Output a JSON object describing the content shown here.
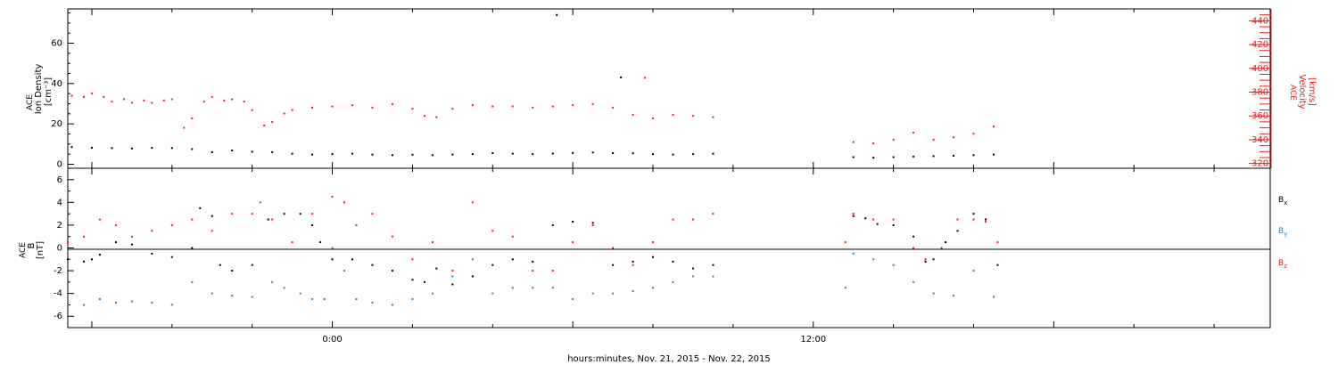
{
  "chart_data": [
    {
      "type": "scatter",
      "title": "",
      "ylabel_lines": [
        "ACE",
        "Ion Density",
        "[cm⁻³]"
      ],
      "ylim": [
        -2,
        77
      ],
      "yticks": [
        0,
        20,
        40,
        60
      ],
      "y2label_lines": [
        "ACE",
        "Velocity",
        "[km/s]"
      ],
      "y2lim": [
        316,
        450
      ],
      "y2ticks": [
        320,
        340,
        360,
        380,
        400,
        420,
        440
      ],
      "colors": {
        "density": "#000000",
        "velocity": "#e8201f"
      },
      "series": [
        {
          "axis": "left",
          "color": "#000000",
          "points": [
            [
              -6.5,
              8.5
            ],
            [
              -6,
              8.2
            ],
            [
              -5.5,
              8.0
            ],
            [
              -5,
              7.8
            ],
            [
              -4.5,
              8.1
            ],
            [
              -4,
              8.0
            ],
            [
              -3.5,
              7.5
            ],
            [
              -3,
              6.0
            ],
            [
              -2.5,
              6.8
            ],
            [
              -2,
              6.2
            ],
            [
              -1.5,
              6.0
            ],
            [
              -1,
              5.2
            ],
            [
              -0.5,
              4.8
            ],
            [
              0,
              5.0
            ],
            [
              0.5,
              5.2
            ],
            [
              1,
              4.8
            ],
            [
              1.5,
              4.5
            ],
            [
              2,
              4.7
            ],
            [
              2.5,
              4.5
            ],
            [
              3,
              4.8
            ],
            [
              3.5,
              5.0
            ],
            [
              4,
              5.5
            ],
            [
              4.5,
              5.2
            ],
            [
              5,
              5.0
            ],
            [
              5.5,
              5.3
            ],
            [
              6,
              5.6
            ],
            [
              6.5,
              5.8
            ],
            [
              7,
              5.5
            ],
            [
              7.5,
              5.4
            ],
            [
              8,
              5.0
            ],
            [
              8.5,
              4.8
            ],
            [
              9,
              5.0
            ],
            [
              9.5,
              5.2
            ],
            [
              13,
              3.5
            ],
            [
              13.5,
              3.2
            ],
            [
              14,
              3.5
            ],
            [
              14.5,
              3.8
            ],
            [
              15,
              4.0
            ],
            [
              15.5,
              4.2
            ],
            [
              16,
              4.5
            ],
            [
              16.5,
              4.8
            ],
            [
              7.2,
              43
            ],
            [
              5.6,
              74
            ]
          ]
        },
        {
          "axis": "right",
          "color": "#e8201f",
          "points": [
            [
              -6.5,
              377
            ],
            [
              -6.2,
              376
            ],
            [
              -6,
              379
            ],
            [
              -5.7,
              376
            ],
            [
              -5.5,
              372
            ],
            [
              -5.2,
              374
            ],
            [
              -5,
              371
            ],
            [
              -4.7,
              373
            ],
            [
              -4.5,
              371
            ],
            [
              -4.2,
              373
            ],
            [
              -4,
              374
            ],
            [
              -3.7,
              350
            ],
            [
              -3.5,
              358
            ],
            [
              -3.2,
              372
            ],
            [
              -3,
              376
            ],
            [
              -2.7,
              373
            ],
            [
              -2.5,
              374
            ],
            [
              -2.2,
              372
            ],
            [
              -2,
              365
            ],
            [
              -1.7,
              352
            ],
            [
              -1.5,
              355
            ],
            [
              -1.2,
              362
            ],
            [
              -1,
              365
            ],
            [
              -0.5,
              367
            ],
            [
              0,
              368
            ],
            [
              0.5,
              369
            ],
            [
              1,
              367
            ],
            [
              1.5,
              370
            ],
            [
              2,
              366
            ],
            [
              2.3,
              360
            ],
            [
              2.6,
              359
            ],
            [
              3,
              366
            ],
            [
              3.5,
              369
            ],
            [
              4,
              368
            ],
            [
              4.5,
              368
            ],
            [
              5,
              367
            ],
            [
              5.5,
              368
            ],
            [
              6,
              369
            ],
            [
              6.5,
              370
            ],
            [
              7,
              367
            ],
            [
              7.5,
              361
            ],
            [
              7.8,
              392
            ],
            [
              8,
              358
            ],
            [
              8.5,
              361
            ],
            [
              9,
              360
            ],
            [
              9.5,
              359
            ],
            [
              13,
              338
            ],
            [
              13.5,
              337
            ],
            [
              14,
              340
            ],
            [
              14.5,
              346
            ],
            [
              15,
              340
            ],
            [
              15.5,
              342
            ],
            [
              16,
              345
            ],
            [
              16.5,
              351
            ]
          ]
        }
      ]
    },
    {
      "type": "scatter",
      "title": "",
      "ylabel_lines": [
        "ACE",
        "B",
        "[nT]"
      ],
      "ylim": [
        -7,
        7
      ],
      "yticks": [
        -6,
        -4,
        -2,
        0,
        2,
        4,
        6
      ],
      "legend_position": "right",
      "legend": [
        {
          "name": "B",
          "sub": "x",
          "color": "#000000"
        },
        {
          "name": "B",
          "sub": "y",
          "color": "#1f86d6"
        },
        {
          "name": "B",
          "sub": "z",
          "color": "#e8201f"
        }
      ],
      "series": [
        {
          "name": "Bx",
          "color": "#000000",
          "points": [
            [
              -6.6,
              -1
            ],
            [
              -6.2,
              -1.2
            ],
            [
              -6,
              -1
            ],
            [
              -5.8,
              -0.6
            ],
            [
              -5.4,
              0.5
            ],
            [
              -5,
              0.3
            ],
            [
              -4.5,
              -0.5
            ],
            [
              -4,
              -0.8
            ],
            [
              -3.5,
              0
            ],
            [
              -3.3,
              3.5
            ],
            [
              -3,
              2.8
            ],
            [
              -2.8,
              -1.5
            ],
            [
              -2.5,
              -2
            ],
            [
              -2,
              -1.5
            ],
            [
              -1.6,
              2.5
            ],
            [
              -1.2,
              3
            ],
            [
              -0.8,
              3
            ],
            [
              -0.5,
              2
            ],
            [
              -0.3,
              0.5
            ],
            [
              0,
              -1
            ],
            [
              0.5,
              -1
            ],
            [
              1,
              -1.5
            ],
            [
              1.5,
              -2
            ],
            [
              2,
              -2.8
            ],
            [
              2.3,
              -3
            ],
            [
              2.6,
              -1.8
            ],
            [
              3,
              -3.2
            ],
            [
              3.5,
              -2.5
            ],
            [
              4,
              -1.5
            ],
            [
              4.5,
              -1
            ],
            [
              5,
              -1.2
            ],
            [
              5.5,
              2
            ],
            [
              6,
              2.3
            ],
            [
              6.5,
              2.2
            ],
            [
              7,
              -1.5
            ],
            [
              7.5,
              -1.2
            ],
            [
              8,
              -0.8
            ],
            [
              8.5,
              -1.2
            ],
            [
              9,
              -1.8
            ],
            [
              9.5,
              -1.5
            ],
            [
              13,
              2.8
            ],
            [
              13.3,
              2.6
            ],
            [
              13.6,
              2.1
            ],
            [
              14,
              2
            ],
            [
              14.5,
              1
            ],
            [
              14.8,
              -1.2
            ],
            [
              15,
              -1
            ],
            [
              15.3,
              0.5
            ],
            [
              15.6,
              1.5
            ],
            [
              16,
              3
            ],
            [
              16.3,
              2.5
            ],
            [
              16.6,
              -1.5
            ]
          ]
        },
        {
          "name": "By",
          "color": "#1f86d6",
          "points": [
            [
              -6.6,
              -5
            ],
            [
              -6.2,
              -5
            ],
            [
              -5.8,
              -4.5
            ],
            [
              -5.4,
              -4.8
            ],
            [
              -5,
              -4.7
            ],
            [
              -4.5,
              -4.8
            ],
            [
              -4,
              -5
            ],
            [
              -3.5,
              -3
            ],
            [
              -3,
              -4
            ],
            [
              -2.5,
              -4.2
            ],
            [
              -2,
              -4.3
            ],
            [
              -1.8,
              4
            ],
            [
              -1.5,
              -3
            ],
            [
              -1.2,
              -3.5
            ],
            [
              -0.8,
              -4
            ],
            [
              -0.5,
              -4.5
            ],
            [
              -0.2,
              -4.5
            ],
            [
              0,
              0
            ],
            [
              0.3,
              -2
            ],
            [
              0.6,
              -4.5
            ],
            [
              1,
              -4.8
            ],
            [
              1.5,
              -5
            ],
            [
              2,
              -4.5
            ],
            [
              2.5,
              -4
            ],
            [
              3,
              -2.5
            ],
            [
              3.5,
              -1
            ],
            [
              4,
              -4
            ],
            [
              4.5,
              -3.5
            ],
            [
              5,
              -3.5
            ],
            [
              5.5,
              -3.5
            ],
            [
              6,
              -4.5
            ],
            [
              6.5,
              -4
            ],
            [
              7,
              -4
            ],
            [
              7.5,
              -3.8
            ],
            [
              8,
              -3.5
            ],
            [
              8.5,
              -3
            ],
            [
              9,
              -2.5
            ],
            [
              9.5,
              -2.5
            ],
            [
              12.8,
              -3.5
            ],
            [
              13,
              -0.5
            ],
            [
              13.5,
              -1
            ],
            [
              14,
              -1.5
            ],
            [
              14.5,
              -3
            ],
            [
              15,
              -4
            ],
            [
              15.5,
              -4.2
            ],
            [
              16,
              -2
            ],
            [
              16.5,
              -4.3
            ]
          ]
        },
        {
          "name": "Bz",
          "color": "#e8201f",
          "points": [
            [
              -6.6,
              0.5
            ],
            [
              -6.2,
              1
            ],
            [
              -5.8,
              2.5
            ],
            [
              -5.4,
              2
            ],
            [
              -5,
              1
            ],
            [
              -4.5,
              1.5
            ],
            [
              -4,
              2
            ],
            [
              -3.5,
              2.5
            ],
            [
              -3,
              1.5
            ],
            [
              -2.5,
              3
            ],
            [
              -2,
              3
            ],
            [
              -1.5,
              2.5
            ],
            [
              -1,
              0.5
            ],
            [
              -0.5,
              3
            ],
            [
              0,
              4.5
            ],
            [
              0.3,
              4
            ],
            [
              0.6,
              2
            ],
            [
              1,
              3
            ],
            [
              1.5,
              1
            ],
            [
              2,
              -1
            ],
            [
              2.5,
              0.5
            ],
            [
              3,
              -2
            ],
            [
              3.5,
              4
            ],
            [
              4,
              1.5
            ],
            [
              4.5,
              1
            ],
            [
              5,
              -2
            ],
            [
              5.5,
              -2
            ],
            [
              6,
              0.5
            ],
            [
              6.5,
              2
            ],
            [
              7,
              0
            ],
            [
              7.5,
              -1.5
            ],
            [
              8,
              0.5
            ],
            [
              8.5,
              2.5
            ],
            [
              9,
              2.5
            ],
            [
              9.5,
              3
            ],
            [
              12.8,
              0.5
            ],
            [
              13,
              3
            ],
            [
              13.5,
              2.5
            ],
            [
              14,
              2.5
            ],
            [
              14.5,
              0
            ],
            [
              14.8,
              -1
            ],
            [
              15.2,
              0
            ],
            [
              15.6,
              2.5
            ],
            [
              16,
              2.5
            ],
            [
              16.3,
              2.3
            ],
            [
              16.6,
              0.5
            ]
          ]
        }
      ]
    }
  ],
  "xaxis": {
    "label": "hours:minutes, Nov. 21, 2015 - Nov. 22, 2015",
    "xlim": [
      -6.6,
      23.4
    ],
    "tick_labels": [
      {
        "value": 0,
        "text": "0:00"
      },
      {
        "value": 12,
        "text": "12:00"
      }
    ]
  }
}
